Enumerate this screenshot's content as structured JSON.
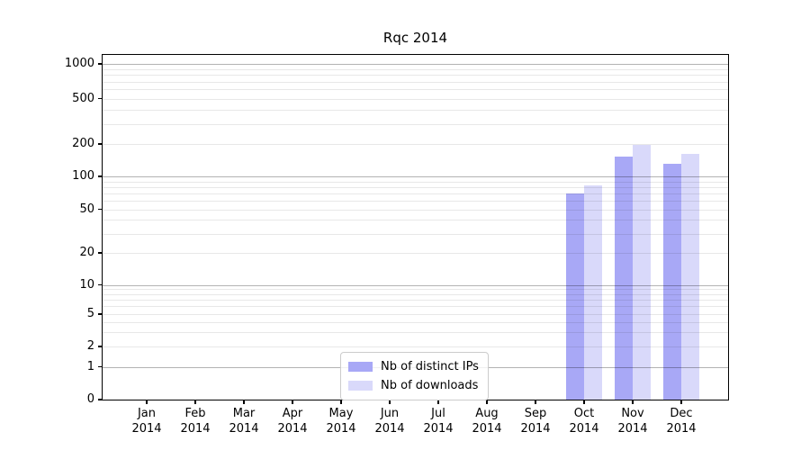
{
  "chart_data": {
    "type": "bar",
    "title": "Rqc 2014",
    "categories": [
      {
        "month": "Jan",
        "year": "2014"
      },
      {
        "month": "Feb",
        "year": "2014"
      },
      {
        "month": "Mar",
        "year": "2014"
      },
      {
        "month": "Apr",
        "year": "2014"
      },
      {
        "month": "May",
        "year": "2014"
      },
      {
        "month": "Jun",
        "year": "2014"
      },
      {
        "month": "Jul",
        "year": "2014"
      },
      {
        "month": "Aug",
        "year": "2014"
      },
      {
        "month": "Sep",
        "year": "2014"
      },
      {
        "month": "Oct",
        "year": "2014"
      },
      {
        "month": "Nov",
        "year": "2014"
      },
      {
        "month": "Dec",
        "year": "2014"
      }
    ],
    "series": [
      {
        "name": "Nb of distinct IPs",
        "color": "#a8a8f6",
        "values": [
          0,
          0,
          0,
          0,
          0,
          0,
          0,
          0,
          0,
          70,
          153,
          131
        ]
      },
      {
        "name": "Nb of downloads",
        "color": "#d9d9fa",
        "values": [
          0,
          0,
          0,
          0,
          0,
          0,
          0,
          0,
          0,
          83,
          198,
          162
        ]
      }
    ],
    "yscale": "symlog",
    "ylim": [
      0,
      1100
    ],
    "y_ticks": [
      0,
      1,
      2,
      5,
      10,
      20,
      50,
      100,
      200,
      500,
      1000
    ],
    "y_minor_gridlines": [
      3,
      4,
      6,
      7,
      8,
      9,
      30,
      40,
      60,
      70,
      80,
      90,
      300,
      400,
      600,
      700,
      800,
      900
    ],
    "y_major_gridlines": [
      1,
      10,
      100,
      1000
    ],
    "grid": true,
    "legend_position": "lower center",
    "xlabel": "",
    "ylabel": ""
  },
  "colors": {
    "bar_series_1": "#a8a8f6",
    "bar_series_2": "#d9d9fa",
    "major_gridline": "#b3b3b3",
    "minor_gridline": "#e8e8e8",
    "axis_spine": "#000000",
    "legend_border": "#cccccc",
    "background": "#ffffff"
  }
}
